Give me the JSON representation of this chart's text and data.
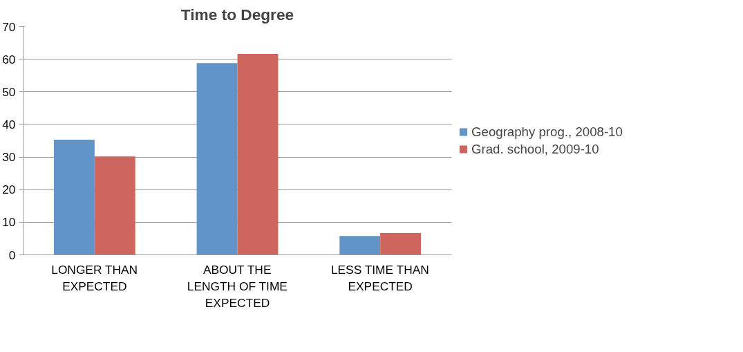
{
  "chart_data": {
    "type": "bar",
    "title": "Time to Degree",
    "categories": [
      "LONGER THAN EXPECTED",
      "ABOUT THE LENGTH OF TIME EXPECTED",
      "LESS TIME THAN EXPECTED"
    ],
    "series": [
      {
        "name": "Geography prog., 2008-10",
        "color": "#6195c8",
        "values": [
          35.3,
          58.8,
          5.8
        ]
      },
      {
        "name": "Grad. school, 2009-10",
        "color": "#cc665e",
        "values": [
          30.2,
          61.6,
          6.7
        ]
      }
    ],
    "ylim": [
      0,
      70
    ],
    "yticks": [
      0,
      10,
      20,
      30,
      40,
      50,
      60,
      70
    ],
    "grid": "y",
    "legend": "right"
  }
}
